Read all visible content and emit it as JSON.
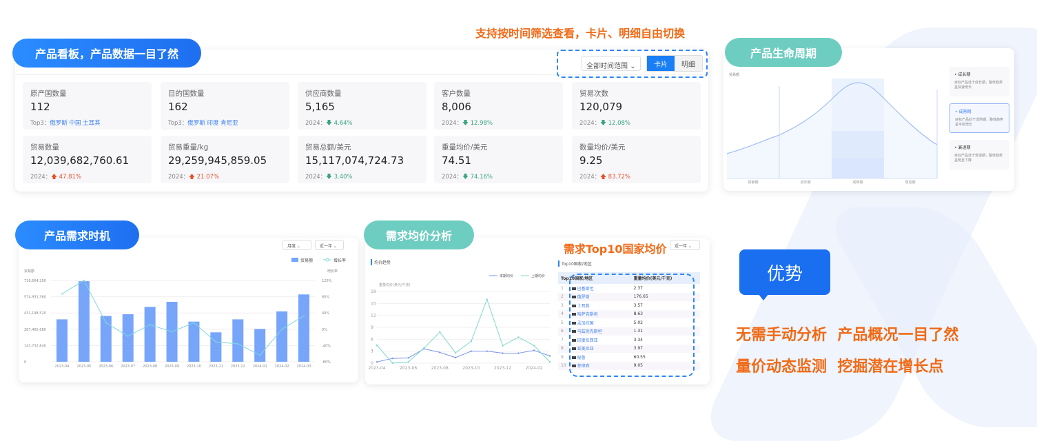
{
  "annotation_top": "支持按时间筛选查看，卡片、明细自由切换",
  "dashboard": {
    "pill": "产品看板，产品数据一目了然",
    "time_select": "全部时间范围",
    "view_toggle": {
      "card": "卡片",
      "detail": "明细",
      "active": "卡片"
    },
    "metrics": [
      {
        "label": "原产国数量",
        "value": "112",
        "sub_prefix": "Top3：",
        "sub": "俄罗斯 中国 土耳其",
        "type": "top3"
      },
      {
        "label": "目的国数量",
        "value": "162",
        "sub_prefix": "Top3：",
        "sub": "俄罗斯 印度 肯尼亚",
        "type": "top3"
      },
      {
        "label": "供应商数量",
        "value": "5,165",
        "sub_prefix": "2024：",
        "sub": "4.64%",
        "type": "down"
      },
      {
        "label": "客户数量",
        "value": "8,006",
        "sub_prefix": "2024：",
        "sub": "12.98%",
        "type": "down"
      },
      {
        "label": "贸易次数",
        "value": "120,079",
        "sub_prefix": "2024：",
        "sub": "12.08%",
        "type": "down"
      },
      {
        "label": "贸易数量",
        "value": "12,039,682,760.61",
        "sub_prefix": "2024：",
        "sub": "47.81%",
        "type": "up"
      },
      {
        "label": "贸易重量/kg",
        "value": "29,259,945,859.05",
        "sub_prefix": "2024：",
        "sub": "21.07%",
        "type": "up"
      },
      {
        "label": "贸易总额/美元",
        "value": "15,117,074,724.73",
        "sub_prefix": "2024：",
        "sub": "3.40%",
        "type": "down"
      },
      {
        "label": "重量均价/美元",
        "value": "74.51",
        "sub_prefix": "2024：",
        "sub": "74.16%",
        "type": "down"
      },
      {
        "label": "数量均价/美元",
        "value": "9.25",
        "sub_prefix": "2024：",
        "sub": "83.72%",
        "type": "up"
      }
    ]
  },
  "lifecycle": {
    "pill": "产品生命周期",
    "ylabel": "贸易额",
    "stages": [
      "探索期",
      "成长期",
      "成熟期",
      "衰退期"
    ],
    "active_stage": "成熟期",
    "cards": [
      {
        "title": "成长期",
        "desc": "目标产品处于成长期，整体趋势呈快速增长"
      },
      {
        "title": "成熟期",
        "desc": "目标产品处于成熟期，整体趋势呈平稳增长"
      },
      {
        "title": "衰退期",
        "desc": "目标产品处于衰退期，整体趋势呈明显下降"
      }
    ]
  },
  "demand": {
    "pill": "产品需求时机",
    "select_period": "月度",
    "select_range": "近一年",
    "chart_data": {
      "type": "bar",
      "categories": [
        "2023-04",
        "2023-05",
        "2023-06",
        "2023-07",
        "2023-08",
        "2023-09",
        "2023-10",
        "2023-11",
        "2023-12",
        "2024-01",
        "2024-02",
        "2024-03"
      ],
      "series": [
        {
          "name": "贸易额",
          "type": "bar",
          "values": [
            375000000,
            712000000,
            405000000,
            420000000,
            485000000,
            530000000,
            355000000,
            260000000,
            375000000,
            290000000,
            445000000,
            595000000
          ]
        },
        {
          "name": "增长率",
          "type": "line",
          "values": [
            87,
            120,
            16,
            -17,
            11,
            -6,
            16,
            -31,
            -36,
            -64,
            0,
            33
          ]
        }
      ],
      "ylabel_left": "贸易额",
      "ylabel_right": "增长率",
      "yticks_left": [
        "0",
        "143,732,840",
        "287,465,680",
        "431,198,520",
        "574,931,360",
        "718,664,200"
      ],
      "yticks_right": [
        "-80%",
        "-40%",
        "0%",
        "40%",
        "80%",
        "120%"
      ],
      "ylim_left": [
        0,
        718664200
      ],
      "ylim_right": [
        -80,
        120
      ],
      "legend": "top-right",
      "grid": true,
      "colors": [
        "#76a5fa",
        "#7fd8dd"
      ]
    }
  },
  "price": {
    "pill": "需求均价分析",
    "select_range": "近一年",
    "trend_title": "均价趋势",
    "top10_title": "Top10国家/地区",
    "annotation": "需求Top10国家均价",
    "chart_data": {
      "type": "line",
      "x": [
        "2023-04",
        "2023-05",
        "2023-06",
        "2023-07",
        "2023-08",
        "2023-09",
        "2023-10",
        "2023-11",
        "2023-12",
        "2024-01",
        "2024-02",
        "2024-03"
      ],
      "xtick_labels": [
        "2023-04",
        "2023-06",
        "2023-08",
        "2023-10",
        "2023-12",
        "2024-02"
      ],
      "ylabel": "重量均价(美元/千克)",
      "yticks": [
        "0",
        "3",
        "6",
        "9",
        "12",
        "15",
        "18"
      ],
      "ylim": [
        0,
        18
      ],
      "series": [
        {
          "name": "本期均价",
          "values": [
            0.3,
            1.2,
            1.3,
            3.6,
            2.7,
            1.4,
            3.0,
            3.0,
            2.5,
            2.5,
            3.2,
            1.8
          ]
        },
        {
          "name": "上期均价",
          "values": [
            4.5,
            0,
            0.3,
            3.8,
            7.8,
            2.6,
            5.5,
            16,
            4.4,
            6.5,
            4.4,
            0.3
          ]
        }
      ],
      "legend": "top-right",
      "grid": true,
      "colors": [
        "#7b96ea",
        "#7fd8cc"
      ]
    },
    "table": {
      "headers": [
        "Top10国家/地区",
        "重量均价(美元/千克)"
      ],
      "rows": [
        {
          "rank": "1",
          "country": "巴基斯坦",
          "value": "2.37"
        },
        {
          "rank": "2",
          "country": "俄罗斯",
          "value": "176.65"
        },
        {
          "rank": "3",
          "country": "土耳其",
          "value": "3.57"
        },
        {
          "rank": "4",
          "country": "哈萨克斯坦",
          "value": "8.63"
        },
        {
          "rank": "5",
          "country": "孟加拉国",
          "value": "5.02"
        },
        {
          "rank": "6",
          "country": "乌兹别克斯坦",
          "value": "1.31"
        },
        {
          "rank": "7",
          "country": "印度尼西亚",
          "value": "3.34"
        },
        {
          "rank": "8",
          "country": "亚美尼亚",
          "value": "3.97"
        },
        {
          "rank": "9",
          "country": "秘鲁",
          "value": "60.55"
        },
        {
          "rank": "10",
          "country": "菲律宾",
          "value": "9.05"
        }
      ]
    }
  },
  "advantage": {
    "badge": "优势",
    "lines": [
      "无需手动分析  产品概况一目了然",
      "量价动态监测  挖掘潜在增长点"
    ],
    "accent": "#f06a16",
    "badge_color": "#1a6ff0"
  }
}
